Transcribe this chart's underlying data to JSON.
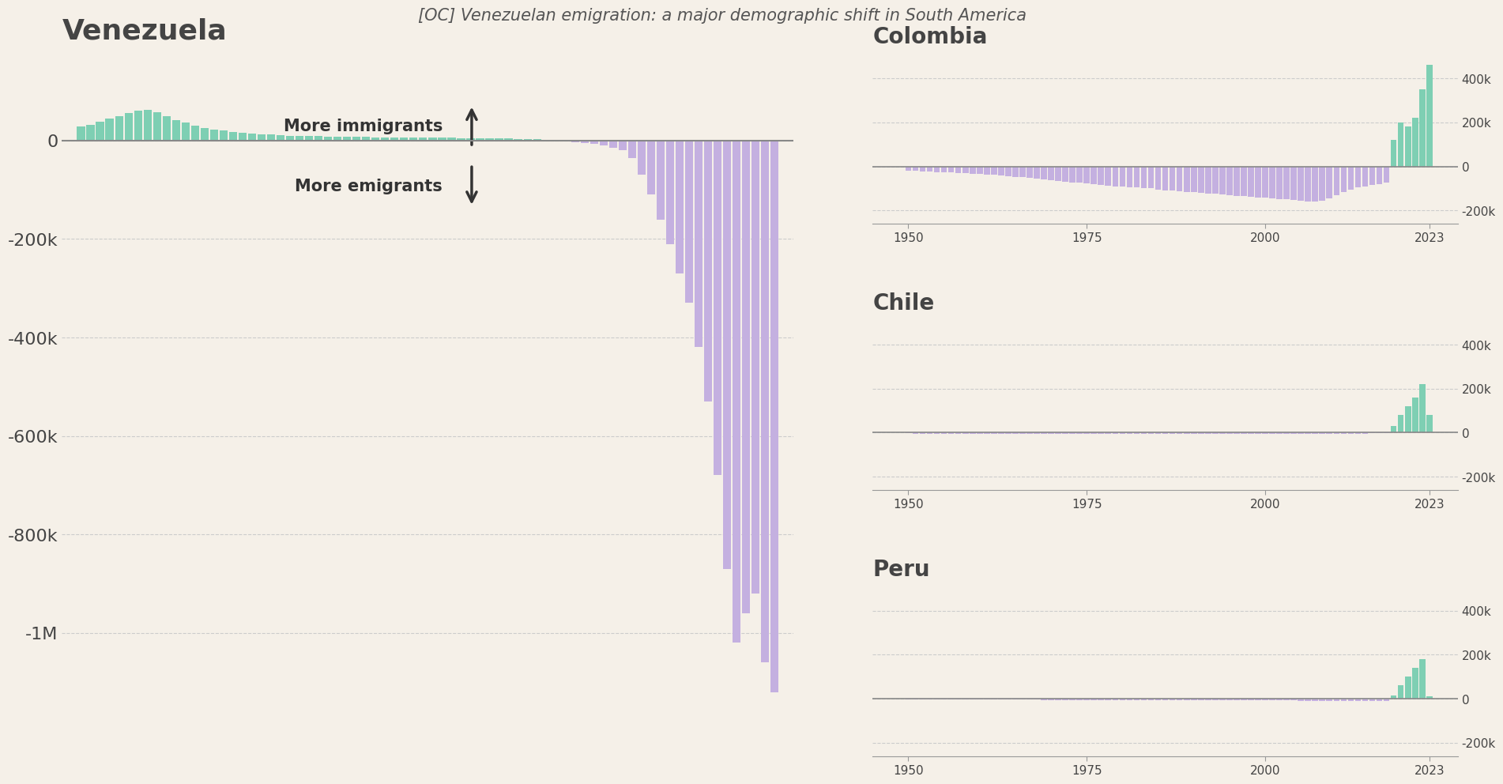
{
  "background_color": "#f5f0e8",
  "title": "[OC] Venezuelan emigration: a major demographic shift in South America",
  "immigrant_color": "#7ecfb3",
  "emigrant_color": "#c4b0e0",
  "text_color": "#444444",
  "grid_color": "#cccccc",
  "zero_line_color": "#888888",
  "years": [
    1950,
    1951,
    1952,
    1953,
    1954,
    1955,
    1956,
    1957,
    1958,
    1959,
    1960,
    1961,
    1962,
    1963,
    1964,
    1965,
    1966,
    1967,
    1968,
    1969,
    1970,
    1971,
    1972,
    1973,
    1974,
    1975,
    1976,
    1977,
    1978,
    1979,
    1980,
    1981,
    1982,
    1983,
    1984,
    1985,
    1986,
    1987,
    1988,
    1989,
    1990,
    1991,
    1992,
    1993,
    1994,
    1995,
    1996,
    1997,
    1998,
    1999,
    2000,
    2001,
    2002,
    2003,
    2004,
    2005,
    2006,
    2007,
    2008,
    2009,
    2010,
    2011,
    2012,
    2013,
    2014,
    2015,
    2016,
    2017,
    2018,
    2019,
    2020,
    2021,
    2022,
    2023
  ],
  "venezuela": [
    28000,
    32000,
    38000,
    44000,
    50000,
    56000,
    60000,
    62000,
    58000,
    50000,
    42000,
    36000,
    30000,
    26000,
    22000,
    20000,
    18000,
    16000,
    14000,
    13000,
    12000,
    11000,
    10000,
    9500,
    9000,
    9000,
    8500,
    8000,
    7500,
    7000,
    7000,
    6500,
    6500,
    6000,
    6000,
    5500,
    5500,
    5500,
    5500,
    5500,
    5000,
    5000,
    5000,
    4500,
    4000,
    4000,
    3500,
    3000,
    2500,
    2000,
    500,
    -1000,
    -3000,
    -5000,
    -7000,
    -10000,
    -15000,
    -20000,
    -35000,
    -70000,
    -110000,
    -160000,
    -210000,
    -270000,
    -330000,
    -420000,
    -530000,
    -680000,
    -870000,
    -1020000,
    -960000,
    -920000,
    -1060000,
    -1120000
  ],
  "colombia_years": [
    1950,
    1951,
    1952,
    1953,
    1954,
    1955,
    1956,
    1957,
    1958,
    1959,
    1960,
    1961,
    1962,
    1963,
    1964,
    1965,
    1966,
    1967,
    1968,
    1969,
    1970,
    1971,
    1972,
    1973,
    1974,
    1975,
    1976,
    1977,
    1978,
    1979,
    1980,
    1981,
    1982,
    1983,
    1984,
    1985,
    1986,
    1987,
    1988,
    1989,
    1990,
    1991,
    1992,
    1993,
    1994,
    1995,
    1996,
    1997,
    1998,
    1999,
    2000,
    2001,
    2002,
    2003,
    2004,
    2005,
    2006,
    2007,
    2008,
    2009,
    2010,
    2011,
    2012,
    2013,
    2014,
    2015,
    2016,
    2017,
    2018,
    2019,
    2020,
    2021,
    2022,
    2023
  ],
  "colombia": [
    -18000,
    -20000,
    -22000,
    -24000,
    -25000,
    -26000,
    -28000,
    -30000,
    -32000,
    -33000,
    -35000,
    -37000,
    -39000,
    -42000,
    -45000,
    -48000,
    -50000,
    -52000,
    -55000,
    -58000,
    -62000,
    -65000,
    -68000,
    -72000,
    -75000,
    -78000,
    -82000,
    -85000,
    -88000,
    -90000,
    -92000,
    -94000,
    -96000,
    -98000,
    -100000,
    -105000,
    -108000,
    -110000,
    -112000,
    -115000,
    -118000,
    -120000,
    -122000,
    -125000,
    -128000,
    -130000,
    -133000,
    -135000,
    -138000,
    -140000,
    -142000,
    -145000,
    -148000,
    -150000,
    -152000,
    -155000,
    -158000,
    -160000,
    -155000,
    -145000,
    -130000,
    -115000,
    -105000,
    -95000,
    -90000,
    -85000,
    -80000,
    -75000,
    120000,
    200000,
    180000,
    220000,
    350000,
    460000
  ],
  "chile_years": [
    1950,
    1951,
    1952,
    1953,
    1954,
    1955,
    1956,
    1957,
    1958,
    1959,
    1960,
    1961,
    1962,
    1963,
    1964,
    1965,
    1966,
    1967,
    1968,
    1969,
    1970,
    1971,
    1972,
    1973,
    1974,
    1975,
    1976,
    1977,
    1978,
    1979,
    1980,
    1981,
    1982,
    1983,
    1984,
    1985,
    1986,
    1987,
    1988,
    1989,
    1990,
    1991,
    1992,
    1993,
    1994,
    1995,
    1996,
    1997,
    1998,
    1999,
    2000,
    2001,
    2002,
    2003,
    2004,
    2005,
    2006,
    2007,
    2008,
    2009,
    2010,
    2011,
    2012,
    2013,
    2014,
    2015,
    2016,
    2017,
    2018,
    2019,
    2020,
    2021,
    2022,
    2023
  ],
  "chile": [
    -4000,
    -4200,
    -4400,
    -4600,
    -4800,
    -5000,
    -5200,
    -5400,
    -5500,
    -5600,
    -5700,
    -5800,
    -5900,
    -6000,
    -6100,
    -6200,
    -6300,
    -6400,
    -6500,
    -6600,
    -6700,
    -6800,
    -6900,
    -7000,
    -7100,
    -7200,
    -7300,
    -7400,
    -7500,
    -7600,
    -7500,
    -7400,
    -7300,
    -7200,
    -7100,
    -7000,
    -6900,
    -6800,
    -6700,
    -6600,
    -6500,
    -6400,
    -6300,
    -6200,
    -6100,
    -6000,
    -5900,
    -5800,
    -5700,
    -5600,
    -5500,
    -5400,
    -5300,
    -5200,
    -5100,
    -5000,
    -4900,
    -4800,
    -4700,
    -4600,
    -4500,
    -4400,
    -4300,
    -4200,
    -4100,
    -4000,
    -3900,
    -3800,
    30000,
    80000,
    120000,
    160000,
    220000,
    80000
  ],
  "peru_years": [
    1950,
    1951,
    1952,
    1953,
    1954,
    1955,
    1956,
    1957,
    1958,
    1959,
    1960,
    1961,
    1962,
    1963,
    1964,
    1965,
    1966,
    1967,
    1968,
    1969,
    1970,
    1971,
    1972,
    1973,
    1974,
    1975,
    1976,
    1977,
    1978,
    1979,
    1980,
    1981,
    1982,
    1983,
    1984,
    1985,
    1986,
    1987,
    1988,
    1989,
    1990,
    1991,
    1992,
    1993,
    1994,
    1995,
    1996,
    1997,
    1998,
    1999,
    2000,
    2001,
    2002,
    2003,
    2004,
    2005,
    2006,
    2007,
    2008,
    2009,
    2010,
    2011,
    2012,
    2013,
    2014,
    2015,
    2016,
    2017,
    2018,
    2019,
    2020,
    2021,
    2022,
    2023
  ],
  "peru": [
    -3000,
    -3100,
    -3200,
    -3300,
    -3400,
    -3500,
    -3600,
    -3700,
    -3800,
    -3900,
    -4000,
    -4100,
    -4200,
    -4300,
    -4400,
    -4500,
    -4600,
    -4700,
    -4800,
    -4900,
    -5000,
    -5100,
    -5200,
    -5300,
    -5400,
    -5500,
    -5600,
    -5700,
    -5800,
    -5900,
    -6000,
    -6100,
    -6200,
    -6300,
    -6400,
    -6500,
    -6600,
    -6700,
    -6800,
    -6900,
    -7000,
    -7100,
    -7200,
    -7300,
    -7400,
    -7500,
    -7600,
    -7700,
    -7800,
    -7900,
    -8000,
    -8100,
    -8200,
    -8300,
    -8400,
    -8500,
    -8600,
    -8700,
    -8800,
    -8900,
    -9000,
    -9100,
    -9200,
    -9300,
    -9400,
    -9500,
    -9600,
    -9700,
    15000,
    60000,
    100000,
    140000,
    180000,
    10000
  ],
  "venezuela_yticks": [
    0,
    -200000,
    -400000,
    -600000,
    -800000,
    -1000000
  ],
  "venezuela_ytick_labels": [
    "0",
    "-200k",
    "-400k",
    "-600k",
    "-800k",
    "-1M"
  ],
  "small_yticks": [
    -200000,
    0,
    200000,
    400000
  ],
  "small_ytick_labels": [
    "-200k",
    "0",
    "200k",
    "400k"
  ]
}
